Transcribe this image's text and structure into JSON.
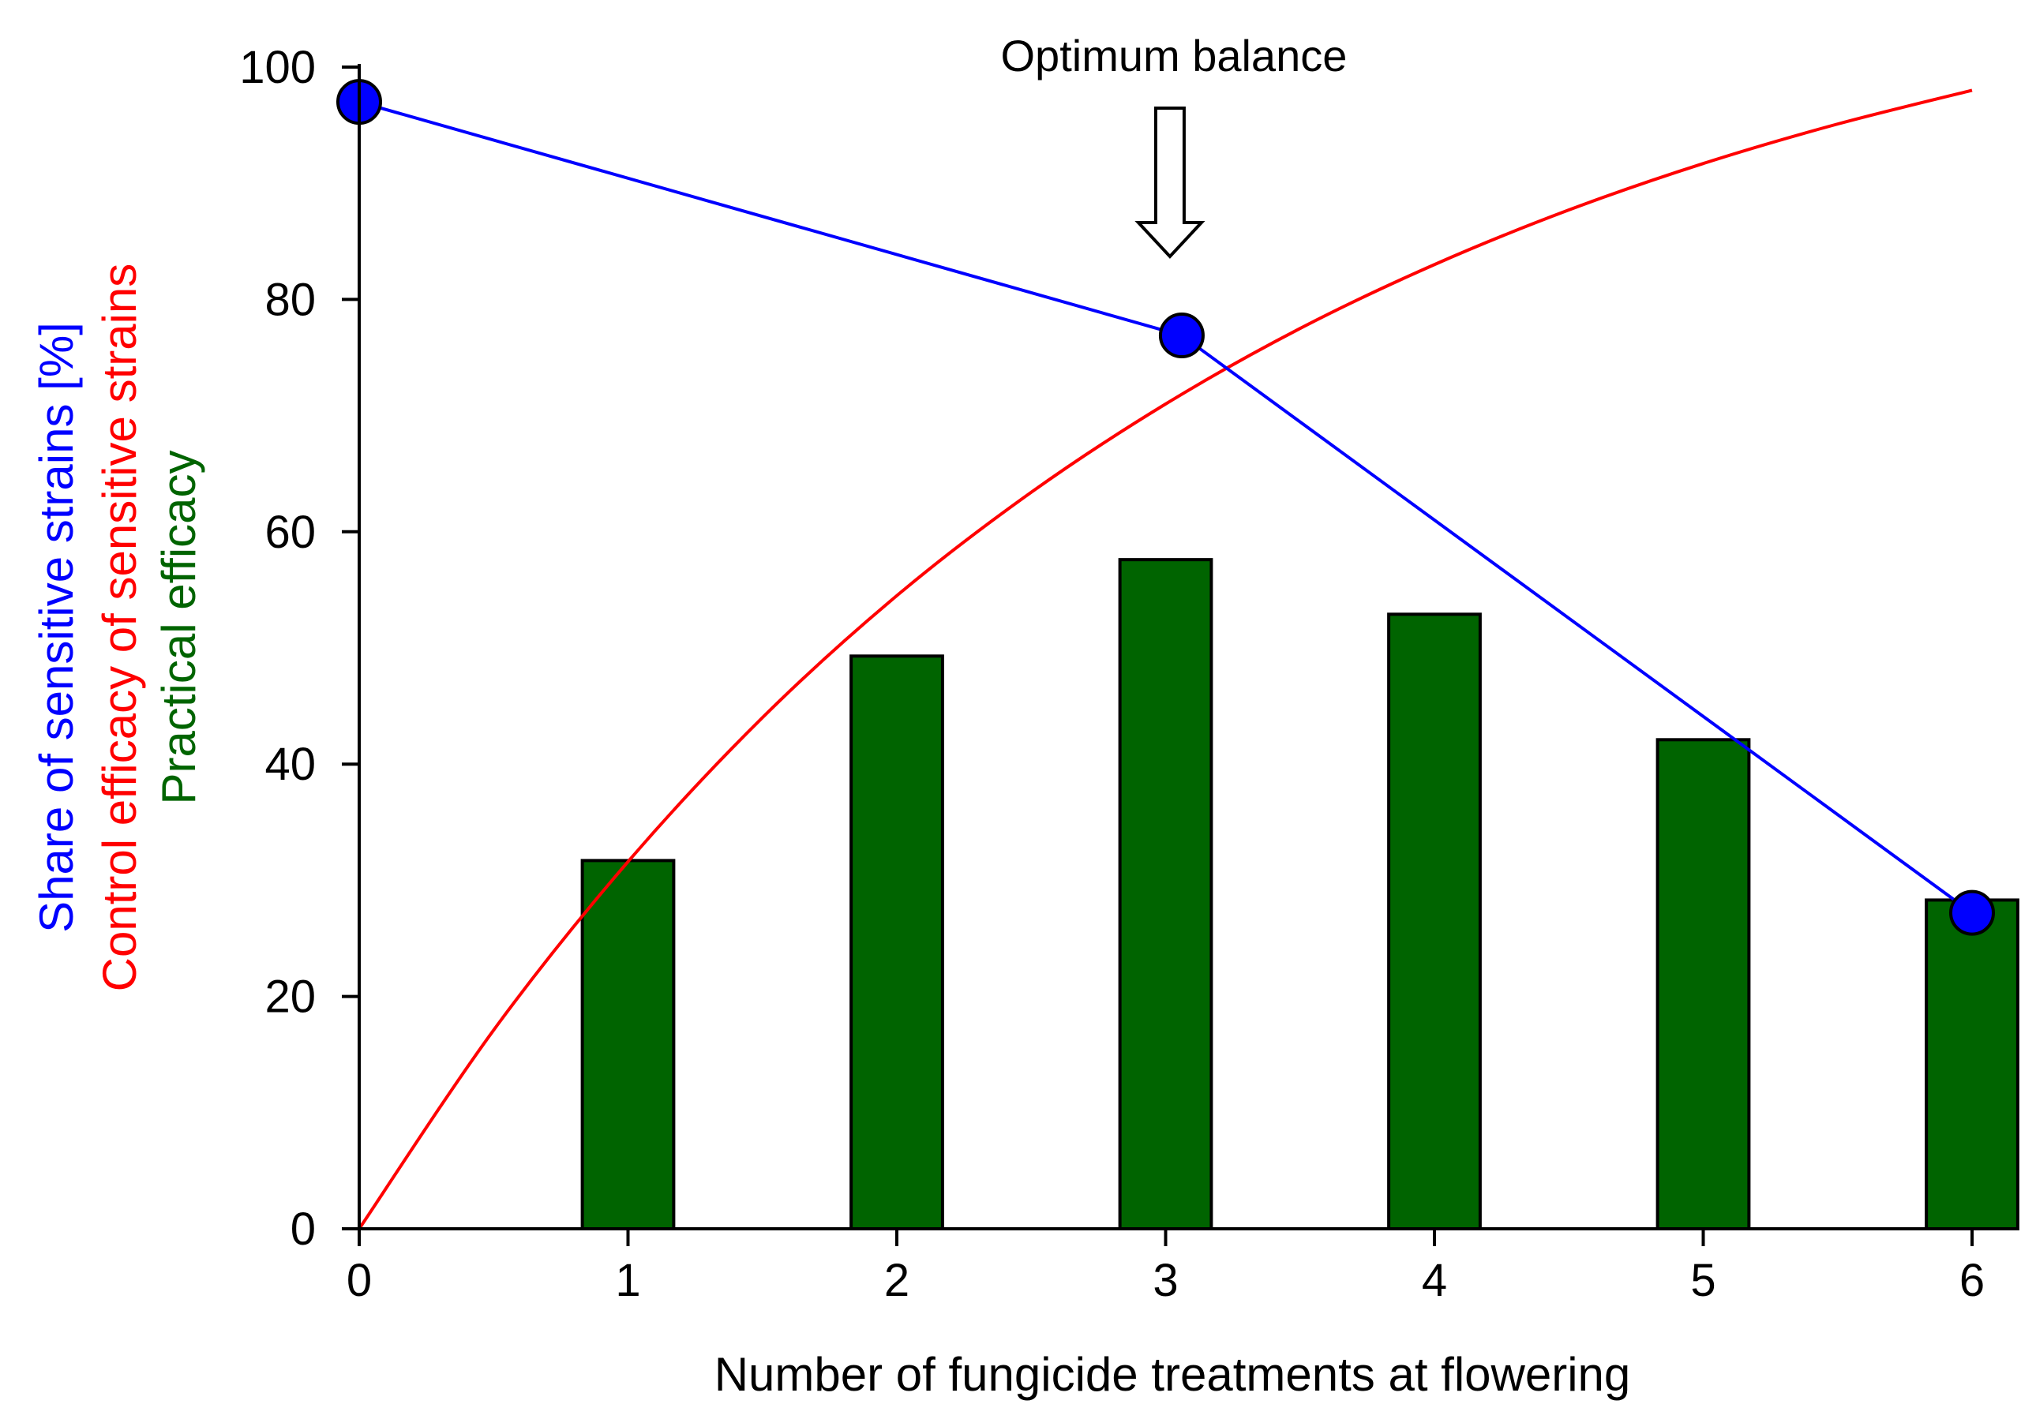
{
  "chart_data": {
    "type": "bar",
    "title": "",
    "xlabel": "Number of fungicide treatments at flowering",
    "ylabels": [
      {
        "text": "Share of sensitive strains [%]",
        "color": "#0000ff"
      },
      {
        "text": "Control efficacy of sensitive strains",
        "color": "#ff0000"
      },
      {
        "text": "Practical efficacy",
        "color": "#006400"
      }
    ],
    "xlim": [
      0,
      6.15
    ],
    "ylim": [
      0,
      100
    ],
    "x_ticks": [
      0,
      1,
      2,
      3,
      4,
      5,
      6
    ],
    "x_tick_labels": [
      "0",
      "1",
      "2",
      "3",
      "4",
      "5",
      "6"
    ],
    "y_ticks": [
      0,
      20,
      40,
      60,
      80,
      100
    ],
    "y_tick_labels": [
      "0",
      "20",
      "40",
      "60",
      "80",
      "100"
    ],
    "grid": false,
    "series": [
      {
        "name": "Practical efficacy",
        "type": "bar",
        "color": "#006400",
        "x": [
          1,
          2,
          3,
          4,
          5,
          6
        ],
        "values": [
          31.7,
          49.3,
          57.6,
          52.9,
          42.1,
          28.3
        ],
        "bar_width": 0.34
      },
      {
        "name": "Share of sensitive strains [%]",
        "type": "line",
        "color": "#0000ff",
        "marker_color": "#0000ff",
        "x": [
          0,
          3.06,
          6
        ],
        "values": [
          97.0,
          76.9,
          27.2
        ]
      },
      {
        "name": "Control efficacy of sensitive strains",
        "type": "line",
        "color": "#ff0000",
        "x": [
          0,
          0.5,
          1,
          1.5,
          2,
          2.5,
          3,
          3.5,
          4,
          4.5,
          5,
          5.5,
          6
        ],
        "values": [
          0,
          17.1,
          31.6,
          44.0,
          54.5,
          63.4,
          71.0,
          77.5,
          83.0,
          87.7,
          91.7,
          95.1,
          98.0
        ]
      }
    ],
    "annotations": [
      {
        "text": "Optimum balance",
        "x": 3.06,
        "arrow": "down"
      }
    ]
  }
}
